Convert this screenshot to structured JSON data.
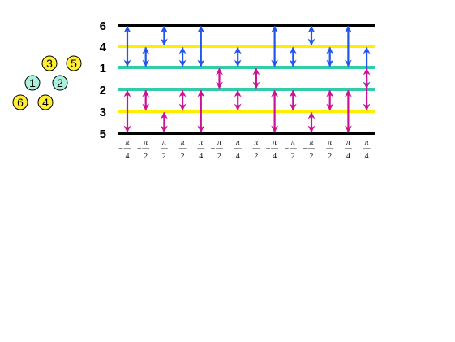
{
  "levels": [
    {
      "id": "6",
      "color": "#000000"
    },
    {
      "id": "4",
      "color": "#ffee00"
    },
    {
      "id": "1",
      "color": "#33ccaa"
    },
    {
      "id": "2",
      "color": "#33ccaa"
    },
    {
      "id": "3",
      "color": "#ffee00"
    },
    {
      "id": "5",
      "color": "#000000"
    }
  ],
  "nodes": [
    {
      "label": "3",
      "fill": "#ffee33"
    },
    {
      "label": "5",
      "fill": "#ffee33"
    },
    {
      "label": "1",
      "fill": "#aaf0dd"
    },
    {
      "label": "2",
      "fill": "#aaf0dd"
    },
    {
      "label": "6",
      "fill": "#ffee33"
    },
    {
      "label": "4",
      "fill": "#ffee33"
    }
  ],
  "arrow_colors": {
    "blue": "#2255ee",
    "magenta": "#cc1199"
  },
  "columns": [
    {
      "sign": "−",
      "num": "π",
      "den": "4",
      "arrows": [
        {
          "c": "blue",
          "from": "6",
          "to": "1"
        },
        {
          "c": "magenta",
          "from": "2",
          "to": "5"
        }
      ]
    },
    {
      "sign": "−",
      "num": "π",
      "den": "2",
      "arrows": [
        {
          "c": "blue",
          "from": "4",
          "to": "1"
        },
        {
          "c": "magenta",
          "from": "2",
          "to": "3"
        }
      ]
    },
    {
      "sign": "",
      "num": "π",
      "den": "2",
      "arrows": [
        {
          "c": "blue",
          "from": "6",
          "to": "4"
        },
        {
          "c": "magenta",
          "from": "3",
          "to": "5"
        }
      ]
    },
    {
      "sign": "",
      "num": "π",
      "den": "2",
      "arrows": [
        {
          "c": "blue",
          "from": "4",
          "to": "1"
        },
        {
          "c": "magenta",
          "from": "2",
          "to": "3"
        }
      ]
    },
    {
      "sign": "",
      "num": "π",
      "den": "4",
      "arrows": [
        {
          "c": "blue",
          "from": "6",
          "to": "1"
        },
        {
          "c": "magenta",
          "from": "2",
          "to": "5"
        }
      ]
    },
    {
      "sign": "−",
      "num": "π",
      "den": "2",
      "arrows": [
        {
          "c": "magenta",
          "from": "1",
          "to": "2"
        }
      ]
    },
    {
      "sign": "",
      "num": "π",
      "den": "4",
      "arrows": [
        {
          "c": "blue",
          "from": "4",
          "to": "1"
        },
        {
          "c": "magenta",
          "from": "2",
          "to": "3"
        }
      ]
    },
    {
      "sign": "",
      "num": "π",
      "den": "2",
      "arrows": [
        {
          "c": "magenta",
          "from": "1",
          "to": "2"
        }
      ]
    },
    {
      "sign": "−",
      "num": "π",
      "den": "4",
      "arrows": [
        {
          "c": "blue",
          "from": "6",
          "to": "1"
        },
        {
          "c": "magenta",
          "from": "2",
          "to": "5"
        }
      ]
    },
    {
      "sign": "−",
      "num": "π",
      "den": "2",
      "arrows": [
        {
          "c": "blue",
          "from": "4",
          "to": "1"
        },
        {
          "c": "magenta",
          "from": "2",
          "to": "3"
        }
      ]
    },
    {
      "sign": "−",
      "num": "π",
      "den": "2",
      "arrows": [
        {
          "c": "blue",
          "from": "6",
          "to": "4"
        },
        {
          "c": "magenta",
          "from": "3",
          "to": "5"
        }
      ]
    },
    {
      "sign": "",
      "num": "π",
      "den": "2",
      "arrows": [
        {
          "c": "blue",
          "from": "4",
          "to": "1"
        },
        {
          "c": "magenta",
          "from": "2",
          "to": "3"
        }
      ]
    },
    {
      "sign": "",
      "num": "π",
      "den": "4",
      "arrows": [
        {
          "c": "blue",
          "from": "6",
          "to": "1"
        },
        {
          "c": "magenta",
          "from": "2",
          "to": "5"
        }
      ]
    },
    {
      "sign": "",
      "num": "π",
      "den": "4",
      "arrows": [
        {
          "c": "blue",
          "from": "4",
          "to": "2"
        },
        {
          "c": "magenta",
          "from": "1",
          "to": "3"
        }
      ]
    }
  ]
}
